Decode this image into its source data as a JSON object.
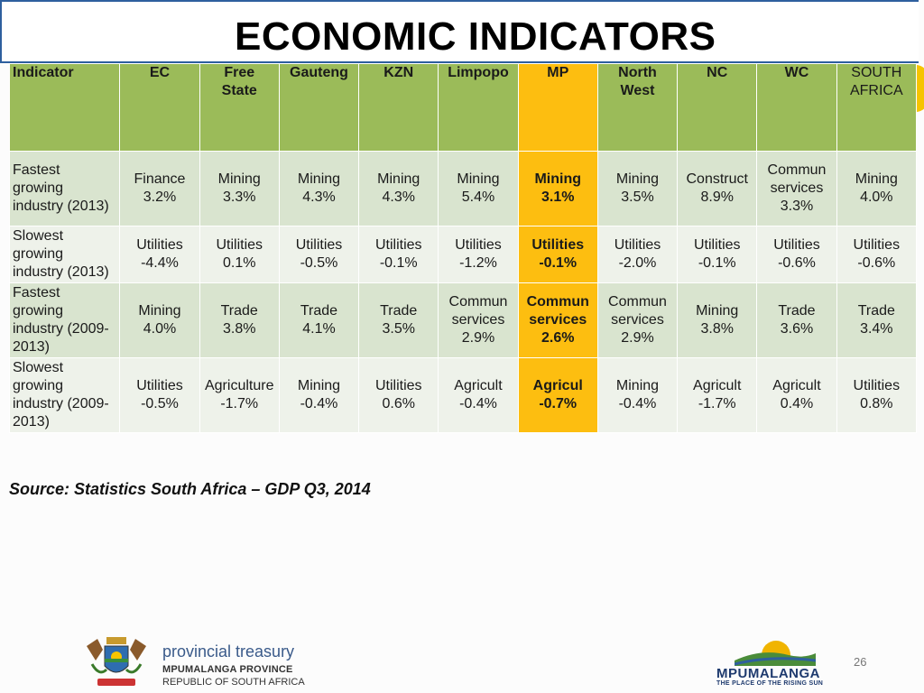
{
  "title": "ECONOMIC INDICATORS",
  "colors": {
    "header_green": "#9bbb59",
    "highlight": "#fdbe10",
    "row_dark": "#d9e4cf",
    "row_light": "#eef2ea",
    "title_border": "#2e5f9e"
  },
  "table": {
    "headers": [
      "Indicator",
      "EC",
      "Free\nState",
      "Gauteng",
      "KZN",
      "Limpopo",
      "MP",
      "North\nWest",
      "NC",
      "WC",
      "SOUTH\nAFRICA"
    ],
    "rows": [
      {
        "label": "Fastest\ngrowing\nindustry (2013)",
        "cells": [
          "Finance\n3.2%",
          "Mining\n3.3%",
          "Mining\n4.3%",
          "Mining\n4.3%",
          "Mining\n5.4%",
          "Mining\n3.1%",
          "Mining\n3.5%",
          "Construct\n8.9%",
          "Commun\nservices\n3.3%",
          "Mining\n4.0%"
        ]
      },
      {
        "label": "Slowest\ngrowing\nindustry (2013)",
        "cells": [
          "Utilities\n-4.4%",
          "Utilities\n0.1%",
          "Utilities\n-0.5%",
          "Utilities\n-0.1%",
          "Utilities\n-1.2%",
          "Utilities\n-0.1%",
          "Utilities\n-2.0%",
          "Utilities\n-0.1%",
          "Utilities\n-0.6%",
          "Utilities\n-0.6%"
        ]
      },
      {
        "label": "Fastest\ngrowing\nindustry (2009-\n2013)",
        "cells": [
          "Mining\n4.0%",
          "Trade\n3.8%",
          "Trade\n4.1%",
          "Trade\n3.5%",
          "Commun\nservices\n2.9%",
          "Commun\nservices\n2.6%",
          "Commun\nservices\n2.9%",
          "Mining\n3.8%",
          "Trade\n3.6%",
          "Trade\n3.4%"
        ]
      },
      {
        "label": "Slowest\ngrowing\nindustry (2009-\n2013)",
        "cells": [
          "Utilities\n-0.5%",
          "Agriculture\n-1.7%",
          "Mining\n-0.4%",
          "Utilities\n0.6%",
          "Agricult\n-0.4%",
          "Agricul\n-0.7%",
          "Mining\n-0.4%",
          "Agricult\n-1.7%",
          "Agricult\n0.4%",
          "Utilities\n0.8%"
        ]
      }
    ]
  },
  "source": "Source: Statistics South Africa – GDP Q3, 2014",
  "footer": {
    "treasury_name": "provincial treasury",
    "province": "MPUMALANGA PROVINCE",
    "republic": "REPUBLIC OF SOUTH AFRICA",
    "page_number": "26",
    "mpumalanga_logo": "MPUMALANGA",
    "mpumalanga_tagline": "THE PLACE OF THE RISING SUN",
    "crest_icon": "coat-of-arms-icon",
    "sun_icon": "rising-sun-icon"
  }
}
